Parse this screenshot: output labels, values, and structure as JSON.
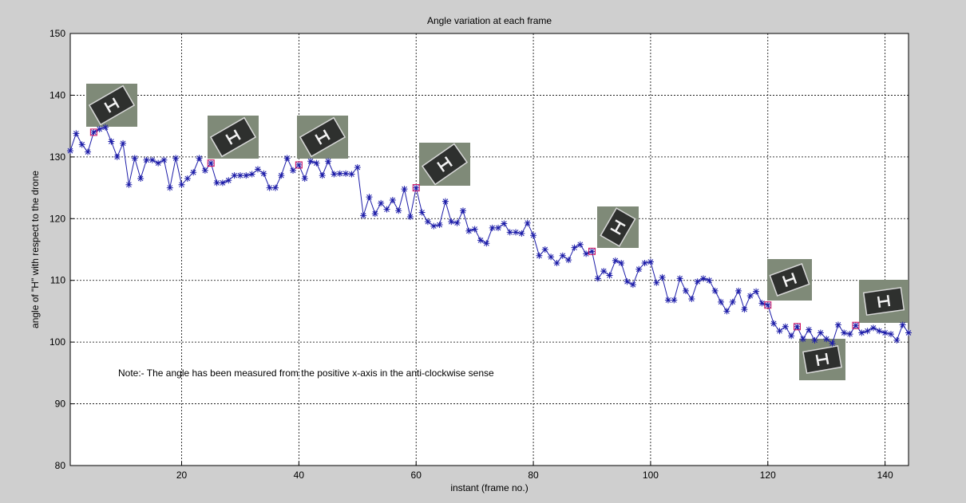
{
  "chart_data": {
    "type": "line",
    "title": "Angle variation at each frame",
    "xlabel": "instant (frame no.)",
    "ylabel": "angle of \"H\" with respect to the drone",
    "annotation": "Note:- The angle has been measured from the positive x-axis in the anti-clockwise sense",
    "x": [
      1,
      2,
      3,
      4,
      5,
      6,
      7,
      8,
      9,
      10,
      11,
      12,
      13,
      14,
      15,
      16,
      17,
      18,
      19,
      20,
      21,
      22,
      23,
      24,
      25,
      26,
      27,
      28,
      29,
      30,
      31,
      32,
      33,
      34,
      35,
      36,
      37,
      38,
      39,
      40,
      41,
      42,
      43,
      44,
      45,
      46,
      47,
      48,
      49,
      50,
      51,
      52,
      53,
      54,
      55,
      56,
      57,
      58,
      59,
      60,
      61,
      62,
      63,
      64,
      65,
      66,
      67,
      68,
      69,
      70,
      71,
      72,
      73,
      74,
      75,
      76,
      77,
      78,
      79,
      80,
      81,
      82,
      83,
      84,
      85,
      86,
      87,
      88,
      89,
      90,
      91,
      92,
      93,
      94,
      95,
      96,
      97,
      98,
      99,
      100,
      101,
      102,
      103,
      104,
      105,
      106,
      107,
      108,
      109,
      110,
      111,
      112,
      113,
      114,
      115,
      116,
      117,
      118,
      119,
      120,
      121,
      122,
      123,
      124,
      125,
      126,
      127,
      128,
      129,
      130,
      131,
      132,
      133,
      134,
      135,
      136,
      137,
      138,
      139,
      140,
      141,
      142,
      143,
      144
    ],
    "series": [
      {
        "color": "#1c1ca8",
        "values": [
          131,
          133.8,
          132,
          130.8,
          134,
          134.5,
          134.8,
          132.5,
          130,
          132.2,
          125.5,
          129.8,
          126.5,
          129.5,
          129.5,
          129,
          129.5,
          125,
          129.8,
          125.5,
          126.5,
          127.5,
          129.8,
          127.8,
          129,
          125.8,
          125.8,
          126.2,
          127,
          127,
          127,
          127.2,
          128,
          127.3,
          125,
          125,
          127,
          129.8,
          127.8,
          128.7,
          126.5,
          129.3,
          129,
          127,
          129.3,
          127.2,
          127.3,
          127.3,
          127.2,
          128.3,
          120.5,
          123.5,
          120.8,
          122.5,
          121.5,
          123,
          121.3,
          124.8,
          120.3,
          125,
          121,
          119.5,
          118.8,
          119,
          122.8,
          119.5,
          119.3,
          121.3,
          118,
          118.3,
          116.5,
          116,
          118.5,
          118.5,
          119.2,
          117.8,
          117.8,
          117.6,
          119.3,
          117.3,
          114,
          115,
          113.8,
          112.8,
          114,
          113.3,
          115.3,
          115.8,
          114.3,
          114.7,
          110.3,
          111.5,
          110.8,
          113.2,
          112.8,
          109.8,
          109.3,
          111.8,
          112.8,
          113,
          109.6,
          110.5,
          106.8,
          106.8,
          110.3,
          108.3,
          107,
          109.8,
          110.3,
          110,
          108.3,
          106.5,
          105,
          106.5,
          108.3,
          105.3,
          107.5,
          108.2,
          106.3,
          106,
          103,
          101.8,
          102.5,
          101,
          102.5,
          100.5,
          102,
          100.3,
          101.5,
          100.5,
          99.8,
          102.8,
          101.5,
          101.3,
          102.7,
          101.5,
          101.8,
          102.3,
          101.8,
          101.5,
          101.3,
          100.3,
          102.8,
          101.5
        ]
      }
    ],
    "highlighted_x": [
      5,
      25,
      40,
      60,
      90,
      120,
      125,
      135
    ],
    "highlight_color": "#d01060",
    "xlim": [
      1,
      144
    ],
    "ylim": [
      80,
      150
    ],
    "xticks": [
      20,
      40,
      60,
      80,
      100,
      120,
      140
    ],
    "yticks": [
      80,
      90,
      100,
      110,
      120,
      130,
      140,
      150
    ],
    "grid": true
  }
}
